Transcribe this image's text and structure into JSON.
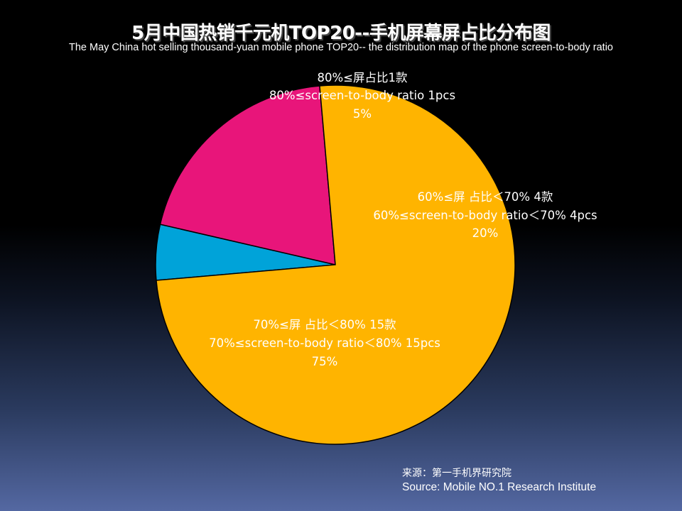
{
  "chart_data": {
    "type": "pie",
    "title": "5月中国热销千元机TOP20--手机屏幕屏占比分布图",
    "subtitle": "The  May China hot selling thousand-yuan mobile phone TOP20-- the distribution map of the phone screen-to-body ratio",
    "slices": [
      {
        "key": "slice-80-plus",
        "label_cn": "80%≤屏占比1款",
        "label_en": "80%≤screen-to-body ratio 1pcs",
        "percent_label": "5%",
        "value": 5,
        "color": "#00a3d9"
      },
      {
        "key": "slice-60-70",
        "label_cn": "60%≤屏 占比＜70% 4款",
        "label_en": "60%≤screen-to-body ratio＜70% 4pcs",
        "percent_label": "20%",
        "value": 20,
        "color": "#e8157a"
      },
      {
        "key": "slice-70-80",
        "label_cn": "70%≤屏 占比＜80% 15款",
        "label_en": "70%≤screen-to-body ratio＜80% 15pcs",
        "percent_label": "75%",
        "value": 75,
        "color": "#ffb400"
      }
    ]
  },
  "source": {
    "cn": "来源：第一手机界研究院",
    "en": "Source: Mobile NO.1 Research Institute"
  }
}
